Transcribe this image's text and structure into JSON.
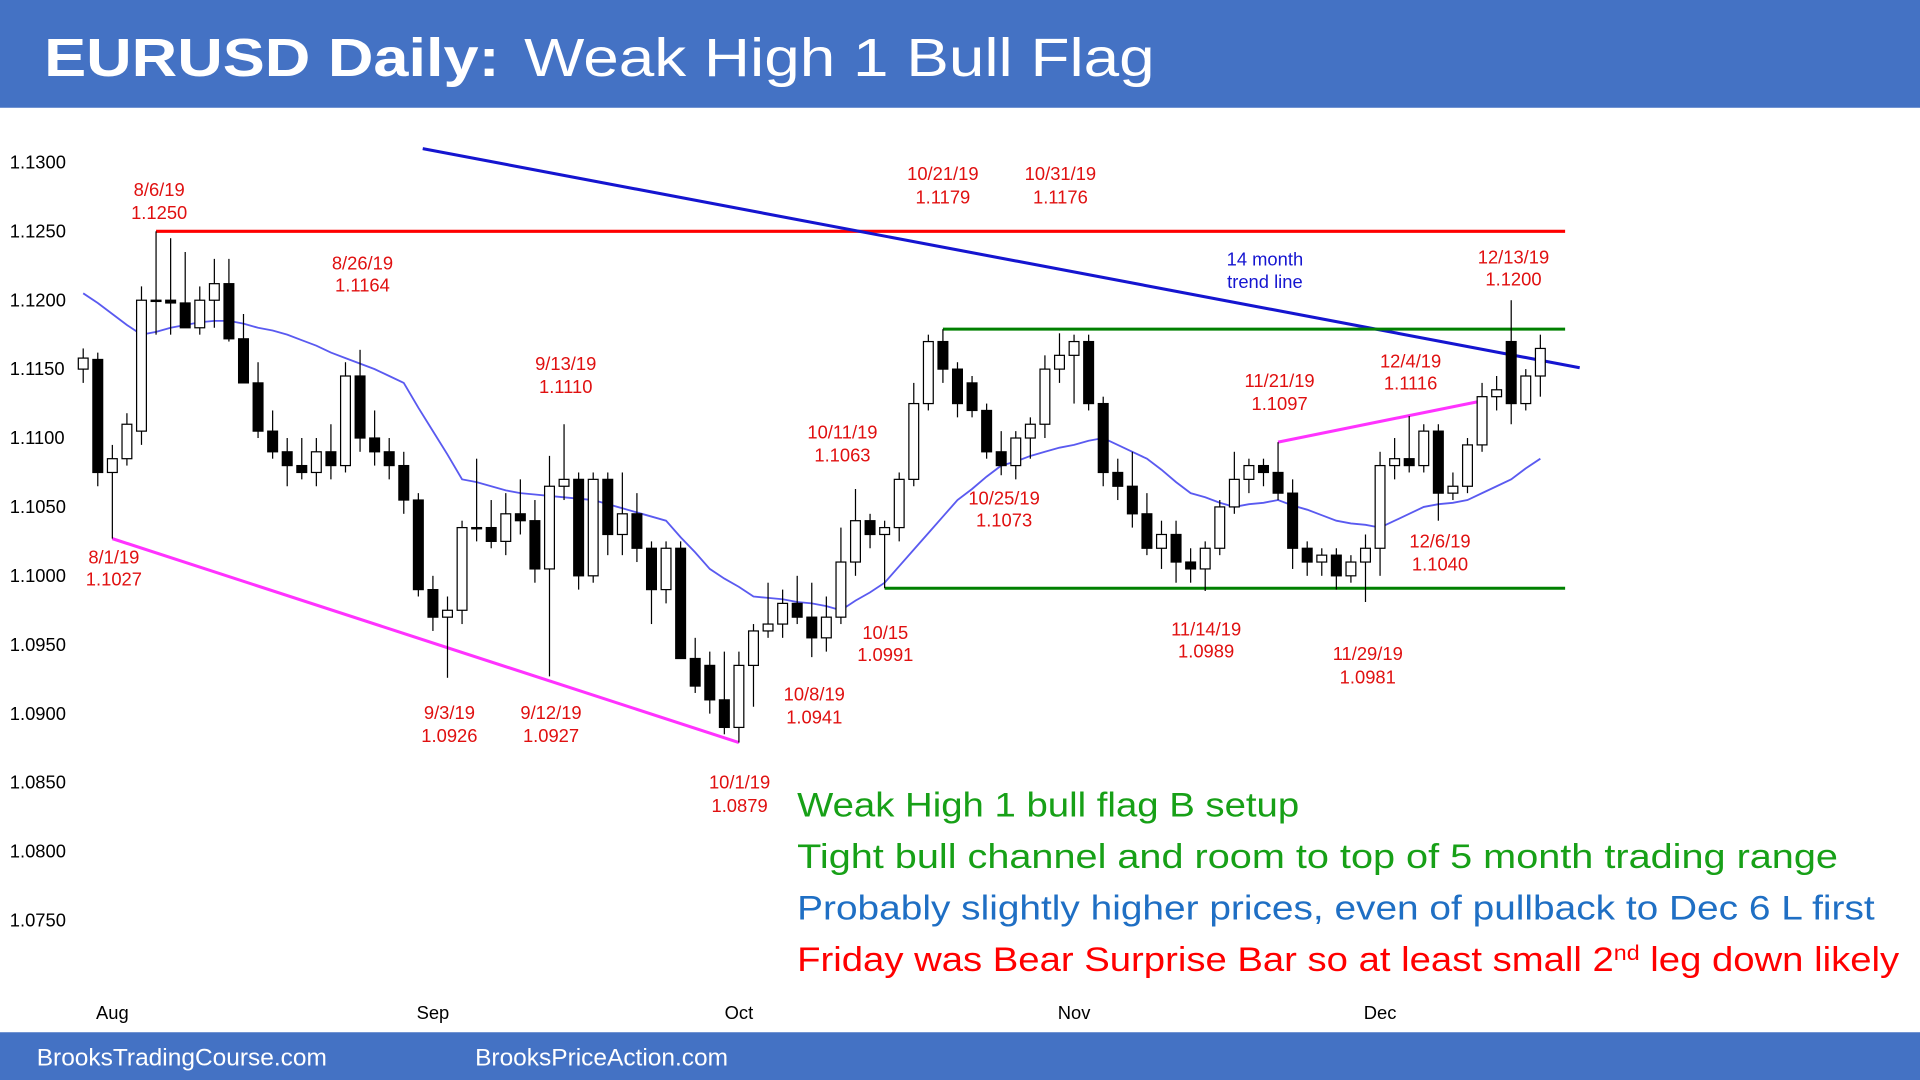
{
  "header": {
    "title_bold": "EURUSD Daily:",
    "title_rest": "Weak High 1 Bull Flag"
  },
  "chart_data": {
    "type": "candlestick",
    "categories": [
      null,
      null,
      "Aug",
      null,
      null,
      null,
      null,
      null,
      null,
      null,
      null,
      null,
      null,
      null,
      null,
      null,
      null,
      null,
      null,
      null,
      null,
      null,
      null,
      null,
      "Sep",
      null,
      null,
      null,
      null,
      null,
      null,
      null,
      null,
      null,
      null,
      null,
      null,
      null,
      null,
      null,
      null,
      null,
      null,
      null,
      null,
      "Oct",
      null,
      null,
      null,
      null,
      null,
      null,
      null,
      null,
      null,
      null,
      null,
      null,
      null,
      null,
      null,
      null,
      null,
      null,
      null,
      null,
      null,
      null,
      "Nov",
      null,
      null,
      null,
      null,
      null,
      null,
      null,
      null,
      null,
      null,
      null,
      null,
      null,
      null,
      null,
      null,
      null,
      null,
      null,
      null,
      "Dec",
      null,
      null,
      null,
      null,
      null,
      null,
      null,
      null,
      null,
      null,
      null
    ],
    "open": [
      1.115,
      1.1157,
      1.1075,
      1.1085,
      1.1105,
      1.12,
      1.12,
      1.1198,
      1.118,
      1.12,
      1.1212,
      1.1172,
      1.114,
      1.1105,
      1.109,
      1.108,
      1.1075,
      1.109,
      1.108,
      1.1145,
      1.11,
      1.109,
      1.108,
      1.1055,
      1.099,
      1.097,
      1.0975,
      1.1035,
      1.1035,
      1.1025,
      1.1045,
      1.104,
      1.1005,
      1.1065,
      1.107,
      1.1,
      1.107,
      1.103,
      1.1045,
      1.102,
      1.099,
      1.102,
      1.094,
      1.0935,
      1.091,
      1.089,
      1.0935,
      1.096,
      1.0965,
      1.098,
      1.097,
      1.0955,
      1.097,
      1.101,
      1.104,
      1.103,
      1.1035,
      1.107,
      1.1125,
      1.117,
      1.115,
      1.114,
      1.112,
      1.109,
      1.108,
      1.11,
      1.111,
      1.115,
      1.116,
      1.117,
      1.1125,
      1.1075,
      1.1065,
      1.1045,
      1.102,
      1.103,
      1.101,
      1.1005,
      1.102,
      1.105,
      1.107,
      1.108,
      1.1075,
      1.106,
      1.102,
      1.101,
      1.1015,
      1.1,
      1.101,
      1.102,
      1.108,
      1.1085,
      1.108,
      1.1105,
      1.106,
      1.1065,
      1.1095,
      1.113,
      1.117,
      1.1125,
      1.1145
    ],
    "high": [
      1.1165,
      1.1162,
      1.1095,
      1.1118,
      1.121,
      1.125,
      1.1245,
      1.1235,
      1.121,
      1.123,
      1.123,
      1.119,
      1.1155,
      1.112,
      1.11,
      1.11,
      1.11,
      1.111,
      1.1155,
      1.1164,
      1.112,
      1.11,
      1.109,
      1.106,
      1.1,
      1.0985,
      1.104,
      1.1085,
      1.1055,
      1.106,
      1.107,
      1.1055,
      1.1087,
      1.111,
      1.1075,
      1.1075,
      1.1075,
      1.1075,
      1.106,
      1.1025,
      1.1025,
      1.1025,
      1.0955,
      1.0945,
      1.0945,
      1.0945,
      1.0965,
      1.0995,
      1.099,
      1.1,
      1.0995,
      1.0985,
      1.1035,
      1.1063,
      1.1045,
      1.104,
      1.1075,
      1.114,
      1.1175,
      1.1179,
      1.1155,
      1.1145,
      1.1125,
      1.1105,
      1.1105,
      1.1115,
      1.116,
      1.1176,
      1.1175,
      1.1175,
      1.113,
      1.1085,
      1.109,
      1.106,
      1.104,
      1.104,
      1.102,
      1.1025,
      1.1055,
      1.109,
      1.1085,
      1.1085,
      1.1097,
      1.107,
      1.1025,
      1.102,
      1.102,
      1.1015,
      1.103,
      1.109,
      1.11,
      1.1116,
      1.111,
      1.111,
      1.1075,
      1.11,
      1.114,
      1.1145,
      1.12,
      1.115,
      1.1175
    ],
    "low": [
      1.114,
      1.1065,
      1.1027,
      1.108,
      1.1095,
      1.1175,
      1.1175,
      1.118,
      1.1175,
      1.118,
      1.117,
      1.114,
      1.11,
      1.1085,
      1.1065,
      1.107,
      1.1065,
      1.107,
      1.1075,
      1.109,
      1.108,
      1.107,
      1.1045,
      1.0985,
      1.096,
      1.0926,
      1.0965,
      1.1025,
      1.102,
      1.1015,
      1.103,
      1.0995,
      1.0927,
      1.1055,
      1.099,
      1.0995,
      1.1015,
      1.1015,
      1.101,
      1.0965,
      1.098,
      1.094,
      1.0915,
      1.09,
      1.0885,
      1.0879,
      1.0905,
      1.0955,
      1.0955,
      1.0965,
      1.0941,
      1.0945,
      1.0965,
      1.1,
      1.102,
      1.0991,
      1.1025,
      1.1065,
      1.112,
      1.114,
      1.1115,
      1.1115,
      1.1085,
      1.1073,
      1.107,
      1.1085,
      1.11,
      1.114,
      1.1125,
      1.112,
      1.1065,
      1.1055,
      1.1035,
      1.1015,
      1.1005,
      1.0995,
      1.0995,
      1.0989,
      1.1015,
      1.1045,
      1.106,
      1.1065,
      1.1055,
      1.1005,
      1.1,
      1.1,
      1.099,
      1.0995,
      1.0981,
      1.1,
      1.107,
      1.1075,
      1.1075,
      1.104,
      1.1055,
      1.106,
      1.109,
      1.112,
      1.111,
      1.112,
      1.113
    ],
    "close": [
      1.1158,
      1.1075,
      1.1085,
      1.111,
      1.12,
      1.12,
      1.1198,
      1.118,
      1.12,
      1.1212,
      1.1172,
      1.114,
      1.1105,
      1.109,
      1.108,
      1.1075,
      1.109,
      1.108,
      1.1145,
      1.11,
      1.109,
      1.108,
      1.1055,
      1.099,
      1.097,
      1.0975,
      1.1035,
      1.1035,
      1.1025,
      1.1045,
      1.104,
      1.1005,
      1.1065,
      1.107,
      1.1,
      1.107,
      1.103,
      1.1045,
      1.102,
      1.099,
      1.102,
      1.094,
      1.092,
      1.091,
      1.089,
      1.0935,
      1.096,
      1.0965,
      1.098,
      1.097,
      1.0955,
      1.097,
      1.101,
      1.104,
      1.103,
      1.1035,
      1.107,
      1.1125,
      1.117,
      1.115,
      1.1125,
      1.112,
      1.109,
      1.108,
      1.11,
      1.111,
      1.115,
      1.116,
      1.117,
      1.1125,
      1.1075,
      1.1065,
      1.1045,
      1.102,
      1.103,
      1.101,
      1.1005,
      1.102,
      1.105,
      1.107,
      1.108,
      1.1075,
      1.106,
      1.102,
      1.101,
      1.1015,
      1.1,
      1.101,
      1.102,
      1.108,
      1.1085,
      1.108,
      1.1105,
      1.106,
      1.1065,
      1.1095,
      1.113,
      1.1135,
      1.1125,
      1.1145,
      1.1165
    ],
    "up_color": "#ffffff",
    "down_color": "#000000",
    "moving_average": {
      "color": "#5a5af0",
      "values": [
        1.1205,
        1.1198,
        1.119,
        1.1182,
        1.1175,
        1.1177,
        1.118,
        1.1182,
        1.1184,
        1.1185,
        1.1185,
        1.1183,
        1.118,
        1.1178,
        1.1175,
        1.1171,
        1.1167,
        1.1162,
        1.1158,
        1.1154,
        1.115,
        1.1145,
        1.114,
        1.1122,
        1.1105,
        1.1088,
        1.107,
        1.1068,
        1.1065,
        1.1062,
        1.106,
        1.1059,
        1.1058,
        1.1057,
        1.1056,
        1.1055,
        1.1052,
        1.1049,
        1.1046,
        1.1043,
        1.104,
        1.1028,
        1.1017,
        1.1005,
        1.0998,
        1.0992,
        1.0985,
        1.0984,
        1.0983,
        1.0981,
        1.098,
        1.0978,
        1.0975,
        1.0982,
        1.0988,
        1.0995,
        1.1007,
        1.1019,
        1.1031,
        1.1043,
        1.1055,
        1.1063,
        1.1072,
        1.108,
        1.1083,
        1.1087,
        1.109,
        1.1093,
        1.1095,
        1.1098,
        1.11,
        1.1095,
        1.109,
        1.1085,
        1.1077,
        1.1068,
        1.106,
        1.1057,
        1.1053,
        1.105,
        1.1052,
        1.1053,
        1.1055,
        1.1051,
        1.1048,
        1.1044,
        1.104,
        1.1038,
        1.1037,
        1.1035,
        1.104,
        1.1045,
        1.105,
        1.1052,
        1.1053,
        1.1055,
        1.106,
        1.1065,
        1.107,
        1.1078,
        1.1085
      ]
    },
    "ylim": [
      1.0707,
      1.1329
    ],
    "yticks": [
      {
        "value": 1.13,
        "label": "1.1300"
      },
      {
        "value": 1.125,
        "label": "1.1250"
      },
      {
        "value": 1.12,
        "label": "1.1200"
      },
      {
        "value": 1.115,
        "label": "1.1150"
      },
      {
        "value": 1.11,
        "label": "1.1100"
      },
      {
        "value": 1.105,
        "label": "1.1050"
      },
      {
        "value": 1.1,
        "label": "1.1000"
      },
      {
        "value": 1.095,
        "label": "1.0950"
      },
      {
        "value": 1.09,
        "label": "1.0900"
      },
      {
        "value": 1.085,
        "label": "1.0850"
      },
      {
        "value": 1.08,
        "label": "1.0800"
      },
      {
        "value": 1.075,
        "label": "1.0750"
      }
    ],
    "lines": [
      {
        "color": "#ff0000",
        "points": [
          [
            5,
            1.125
          ],
          [
            101.7,
            1.125
          ]
        ]
      },
      {
        "color": "#1515d0",
        "points": [
          [
            23.3,
            1.131
          ],
          [
            102.7,
            1.1151
          ]
        ]
      },
      {
        "color": "#008000",
        "points": [
          [
            59,
            1.1179
          ],
          [
            101.7,
            1.1179
          ]
        ]
      },
      {
        "color": "#008000",
        "points": [
          [
            55,
            1.0991
          ],
          [
            101.7,
            1.0991
          ]
        ]
      },
      {
        "color": "#ff33ff",
        "points": [
          [
            2,
            1.1027
          ],
          [
            45,
            1.0879
          ]
        ]
      },
      {
        "color": "#ff33ff",
        "points": [
          [
            82,
            1.1097
          ],
          [
            96,
            1.1127
          ]
        ]
      }
    ],
    "annotation_color": "#e01010",
    "annotations": [
      {
        "date": "8/6/19",
        "price": "1.1250"
      },
      {
        "date": "8/1/19",
        "price": "1.1027"
      },
      {
        "date": "8/26/19",
        "price": "1.1164"
      },
      {
        "date": "9/3/19",
        "price": "1.0926"
      },
      {
        "date": "9/12/19",
        "price": "1.0927"
      },
      {
        "date": "9/13/19",
        "price": "1.1110"
      },
      {
        "date": "10/1/19",
        "price": "1.0879"
      },
      {
        "date": "10/8/19",
        "price": "1.0941"
      },
      {
        "date": "10/11/19",
        "price": "1.1063"
      },
      {
        "date": "10/15",
        "price": "1.0991"
      },
      {
        "date": "10/21/19",
        "price": "1.1179"
      },
      {
        "date": "10/25/19",
        "price": "1.1073"
      },
      {
        "date": "10/31/19",
        "price": "1.1176"
      },
      {
        "date": "11/14/19",
        "price": "1.0989"
      },
      {
        "date": "11/21/19",
        "price": "1.1097"
      },
      {
        "date": "11/29/19",
        "price": "1.0981"
      },
      {
        "date": "12/4/19",
        "price": "1.1116"
      },
      {
        "date": "12/6/19",
        "price": "1.1040"
      },
      {
        "date": "12/13/19",
        "price": "1.1200"
      }
    ],
    "trend_line_label": [
      "14 month",
      "trend line"
    ]
  },
  "commentary": [
    {
      "color": "#17a017",
      "parts": [
        "Weak High 1 bull flag B setup"
      ]
    },
    {
      "color": "#17a017",
      "parts": [
        "Tight bull channel and room to top of 5 month trading range"
      ]
    },
    {
      "color": "#1f6fc4",
      "parts": [
        "Probably slightly higher prices, even of pullback to Dec 6 L first"
      ]
    },
    {
      "color": "#ff0000",
      "parts": [
        "Friday was Bear Surprise Bar so at least small 2",
        "nd",
        " leg down likely"
      ]
    }
  ],
  "footer": [
    "BrooksTradingCourse.com",
    "BrooksPriceAction.com"
  ]
}
